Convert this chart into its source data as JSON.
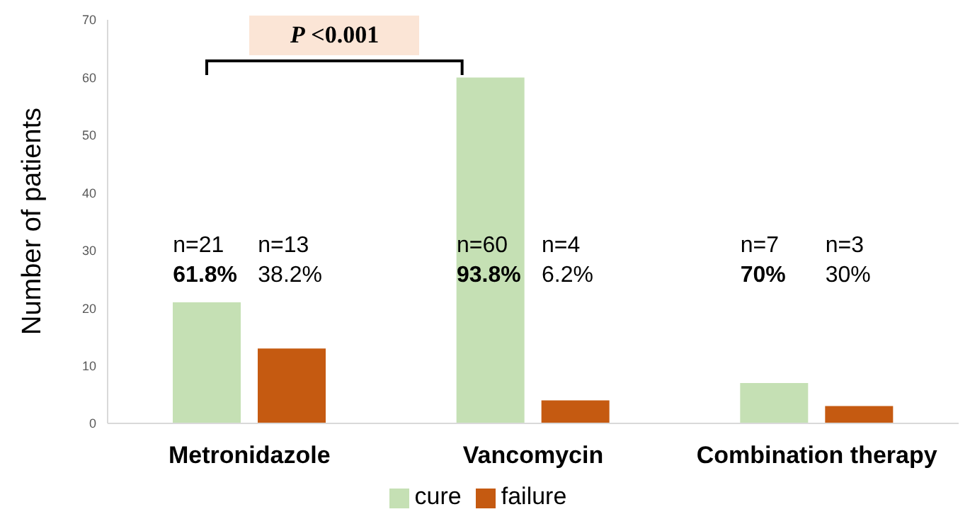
{
  "chart_data": {
    "type": "bar",
    "ylabel": "Number of patients",
    "categories": [
      "Metronidazole",
      "Vancomycin",
      "Combination therapy"
    ],
    "series": [
      {
        "name": "cure",
        "color": "#c5e0b4",
        "values": [
          21,
          60,
          7
        ]
      },
      {
        "name": "failure",
        "color": "#c55a11",
        "values": [
          13,
          4,
          3
        ]
      }
    ],
    "ylim": [
      0,
      70
    ],
    "yticks": [
      0,
      10,
      20,
      30,
      40,
      50,
      60,
      70
    ],
    "grid": false,
    "legend": "bottom",
    "annotations": [
      "P <0.001",
      "n=21",
      "61.8%",
      "n=13",
      "38.2%",
      "n=60",
      "93.8%",
      "n=4",
      "6.2%",
      "n=7",
      "70%",
      "n=3",
      "30%"
    ]
  }
}
